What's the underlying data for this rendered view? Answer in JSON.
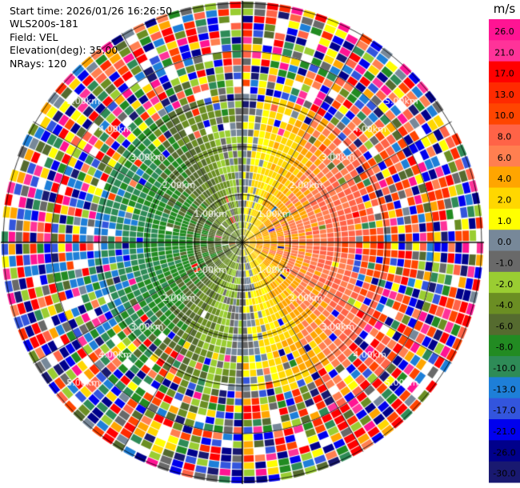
{
  "header": {
    "start_time": "Start time: 2026/01/26 16:26:50",
    "instrument": "WLS200s-181",
    "field": "Field: VEL",
    "elevation": "Elevation(deg): 35.00",
    "nrays": "NRays: 120"
  },
  "chart_data": {
    "type": "heatmap",
    "subtype": "polar-ppi",
    "field": "VEL",
    "units": "m/s",
    "n_rays": 120,
    "elevation_deg": 35.0,
    "range_rings_km": [
      1,
      2,
      3,
      4,
      5
    ],
    "ring_labels": [
      "1.00km",
      "2.00km",
      "3.00km",
      "4.00km",
      "5.00km"
    ],
    "colorbar": {
      "title": "m/s",
      "tick_labels": [
        "26.0",
        "21.0",
        "17.0",
        "13.0",
        "10.0",
        "8.0",
        "6.0",
        "4.0",
        "2.0",
        "1.0",
        "0.0",
        "-1.0",
        "-2.0",
        "-4.0",
        "-6.0",
        "-8.0",
        "-10.0",
        "-13.0",
        "-17.0",
        "-21.0",
        "-26.0",
        "-30.0"
      ],
      "bins": [
        {
          "min": 26,
          "max": 30,
          "color": "#ff1493"
        },
        {
          "min": 21,
          "max": 26,
          "color": "#ff3399"
        },
        {
          "min": 17,
          "max": 21,
          "color": "#ff0000"
        },
        {
          "min": 13,
          "max": 17,
          "color": "#ff2a00"
        },
        {
          "min": 10,
          "max": 13,
          "color": "#ff4500"
        },
        {
          "min": 8,
          "max": 10,
          "color": "#ff6347"
        },
        {
          "min": 6,
          "max": 8,
          "color": "#ff7f50"
        },
        {
          "min": 4,
          "max": 6,
          "color": "#ffa500"
        },
        {
          "min": 2,
          "max": 4,
          "color": "#ffd700"
        },
        {
          "min": 1,
          "max": 2,
          "color": "#ffff00"
        },
        {
          "min": 0,
          "max": 1,
          "color": "#778899"
        },
        {
          "min": -1,
          "max": 0,
          "color": "#696969"
        },
        {
          "min": -2,
          "max": -1,
          "color": "#9acd32"
        },
        {
          "min": -4,
          "max": -2,
          "color": "#6b8e23"
        },
        {
          "min": -6,
          "max": -4,
          "color": "#556b2f"
        },
        {
          "min": -8,
          "max": -6,
          "color": "#228b22"
        },
        {
          "min": -10,
          "max": -8,
          "color": "#2e8b57"
        },
        {
          "min": -13,
          "max": -10,
          "color": "#1e7fd8"
        },
        {
          "min": -17,
          "max": -13,
          "color": "#3355dd"
        },
        {
          "min": -21,
          "max": -17,
          "color": "#0000ee"
        },
        {
          "min": -26,
          "max": -21,
          "color": "#00008b"
        },
        {
          "min": -30,
          "max": -26,
          "color": "#191970"
        }
      ]
    }
  }
}
